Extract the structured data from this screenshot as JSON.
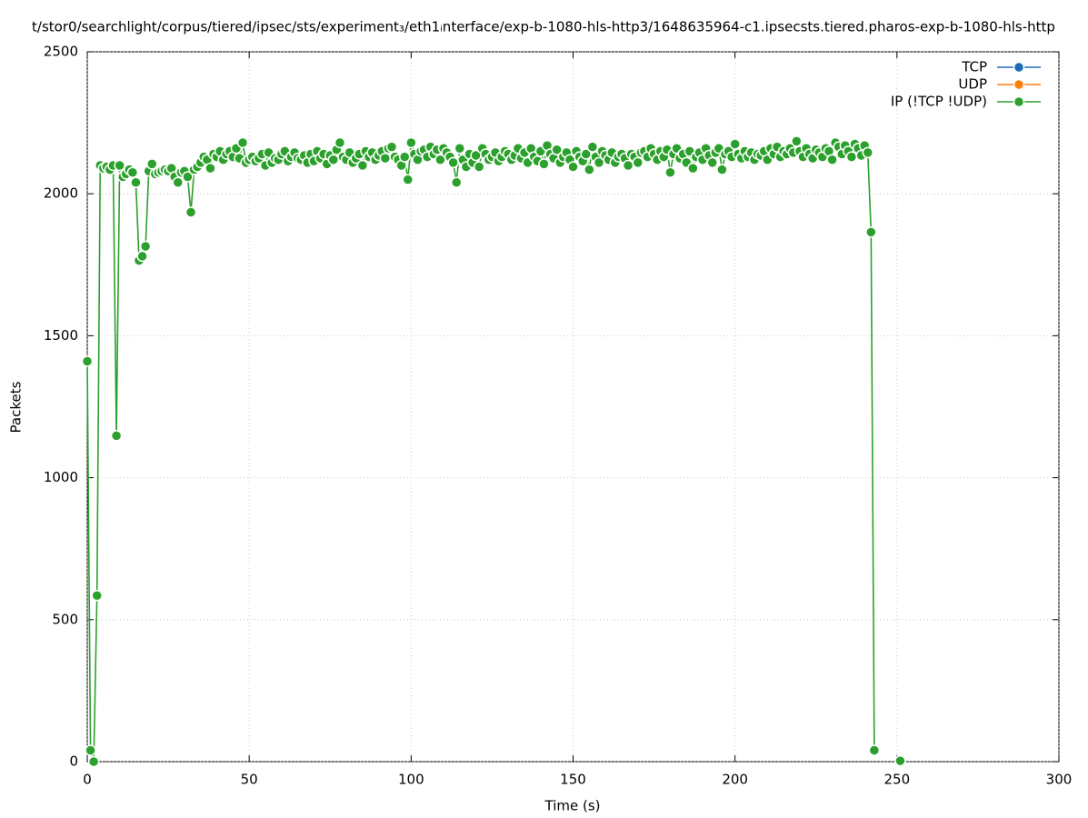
{
  "chart_data": {
    "type": "line",
    "title": "t/stor0/searchlight/corpus/tiered/ipsec/sts/experiment₃/eth1ᵢnterface/exp-b-1080-hls-http3/1648635964-c1.ipsecsts.tiered.pharos-exp-b-1080-hls-http",
    "xlabel": "Time (s)",
    "ylabel": "Packets",
    "xlim": [
      0,
      300
    ],
    "ylim": [
      0,
      2500
    ],
    "xticks": [
      0,
      50,
      100,
      150,
      200,
      250,
      300
    ],
    "yticks": [
      0,
      500,
      1000,
      1500,
      2000,
      2500
    ],
    "grid": true,
    "legend": "upper right",
    "series": [
      {
        "name": "TCP",
        "color": "#1f6bb4",
        "x": [],
        "values": []
      },
      {
        "name": "UDP",
        "color": "#ff7f0e",
        "x": [],
        "values": []
      },
      {
        "name": "IP (!TCP  !UDP)",
        "color": "#2ca02c",
        "x": [
          0,
          1,
          2,
          3,
          4,
          5,
          6,
          7,
          8,
          9,
          10,
          11,
          12,
          13,
          14,
          15,
          16,
          17,
          18,
          19,
          20,
          21,
          22,
          23,
          24,
          25,
          26,
          27,
          28,
          29,
          30,
          31,
          32,
          33,
          34,
          35,
          36,
          37,
          38,
          39,
          40,
          41,
          42,
          43,
          44,
          45,
          46,
          47,
          48,
          49,
          50,
          51,
          52,
          53,
          54,
          55,
          56,
          57,
          58,
          59,
          60,
          61,
          62,
          63,
          64,
          65,
          66,
          67,
          68,
          69,
          70,
          71,
          72,
          73,
          74,
          75,
          76,
          77,
          78,
          79,
          80,
          81,
          82,
          83,
          84,
          85,
          86,
          87,
          88,
          89,
          90,
          91,
          92,
          93,
          94,
          95,
          96,
          97,
          98,
          99,
          100,
          101,
          102,
          103,
          104,
          105,
          106,
          107,
          108,
          109,
          110,
          111,
          112,
          113,
          114,
          115,
          116,
          117,
          118,
          119,
          120,
          121,
          122,
          123,
          124,
          125,
          126,
          127,
          128,
          129,
          130,
          131,
          132,
          133,
          134,
          135,
          136,
          137,
          138,
          139,
          140,
          141,
          142,
          143,
          144,
          145,
          146,
          147,
          148,
          149,
          150,
          151,
          152,
          153,
          154,
          155,
          156,
          157,
          158,
          159,
          160,
          161,
          162,
          163,
          164,
          165,
          166,
          167,
          168,
          169,
          170,
          171,
          172,
          173,
          174,
          175,
          176,
          177,
          178,
          179,
          180,
          181,
          182,
          183,
          184,
          185,
          186,
          187,
          188,
          189,
          190,
          191,
          192,
          193,
          194,
          195,
          196,
          197,
          198,
          199,
          200,
          201,
          202,
          203,
          204,
          205,
          206,
          207,
          208,
          209,
          210,
          211,
          212,
          213,
          214,
          215,
          216,
          217,
          218,
          219,
          220,
          221,
          222,
          223,
          224,
          225,
          226,
          227,
          228,
          229,
          230,
          231,
          232,
          233,
          234,
          235,
          236,
          237,
          238,
          239,
          240,
          241,
          242,
          243,
          247,
          251
        ],
        "values": [
          1410,
          40,
          0,
          585,
          2100,
          2090,
          2095,
          2085,
          2100,
          1148,
          2100,
          2060,
          2070,
          2085,
          2075,
          2040,
          1765,
          1780,
          1815,
          2080,
          2105,
          2070,
          2075,
          2080,
          2085,
          2080,
          2090,
          2060,
          2040,
          2075,
          2080,
          2060,
          1935,
          2085,
          2095,
          2110,
          2130,
          2120,
          2090,
          2140,
          2130,
          2150,
          2120,
          2140,
          2150,
          2130,
          2160,
          2125,
          2180,
          2110,
          2120,
          2130,
          2115,
          2125,
          2140,
          2100,
          2145,
          2110,
          2125,
          2120,
          2140,
          2150,
          2115,
          2130,
          2145,
          2125,
          2120,
          2135,
          2110,
          2140,
          2115,
          2150,
          2125,
          2140,
          2105,
          2135,
          2120,
          2155,
          2180,
          2130,
          2120,
          2145,
          2110,
          2125,
          2140,
          2100,
          2150,
          2130,
          2145,
          2120,
          2135,
          2150,
          2125,
          2160,
          2165,
          2130,
          2120,
          2100,
          2130,
          2050,
          2180,
          2140,
          2120,
          2150,
          2155,
          2130,
          2165,
          2140,
          2155,
          2120,
          2160,
          2145,
          2130,
          2110,
          2040,
          2160,
          2120,
          2095,
          2140,
          2110,
          2135,
          2095,
          2160,
          2140,
          2120,
          2130,
          2145,
          2115,
          2130,
          2150,
          2140,
          2120,
          2135,
          2160,
          2125,
          2145,
          2110,
          2160,
          2130,
          2115,
          2150,
          2105,
          2170,
          2140,
          2125,
          2155,
          2110,
          2130,
          2145,
          2120,
          2095,
          2150,
          2130,
          2115,
          2140,
          2085,
          2165,
          2130,
          2110,
          2150,
          2135,
          2120,
          2145,
          2110,
          2130,
          2140,
          2125,
          2100,
          2140,
          2130,
          2110,
          2145,
          2150,
          2130,
          2160,
          2140,
          2120,
          2150,
          2130,
          2155,
          2075,
          2140,
          2160,
          2125,
          2140,
          2110,
          2150,
          2090,
          2130,
          2145,
          2120,
          2160,
          2135,
          2110,
          2145,
          2160,
          2085,
          2140,
          2150,
          2130,
          2175,
          2140,
          2125,
          2150,
          2130,
          2145,
          2120,
          2140,
          2135,
          2150,
          2120,
          2160,
          2140,
          2165,
          2130,
          2150,
          2140,
          2160,
          2145,
          2185,
          2150,
          2130,
          2160,
          2140,
          2125,
          2155,
          2145,
          2130,
          2160,
          2150,
          2120,
          2180,
          2165,
          2140,
          2170,
          2150,
          2130,
          2175,
          2160,
          2135,
          2170,
          2145,
          1865,
          40,
          null,
          3
        ]
      }
    ]
  }
}
